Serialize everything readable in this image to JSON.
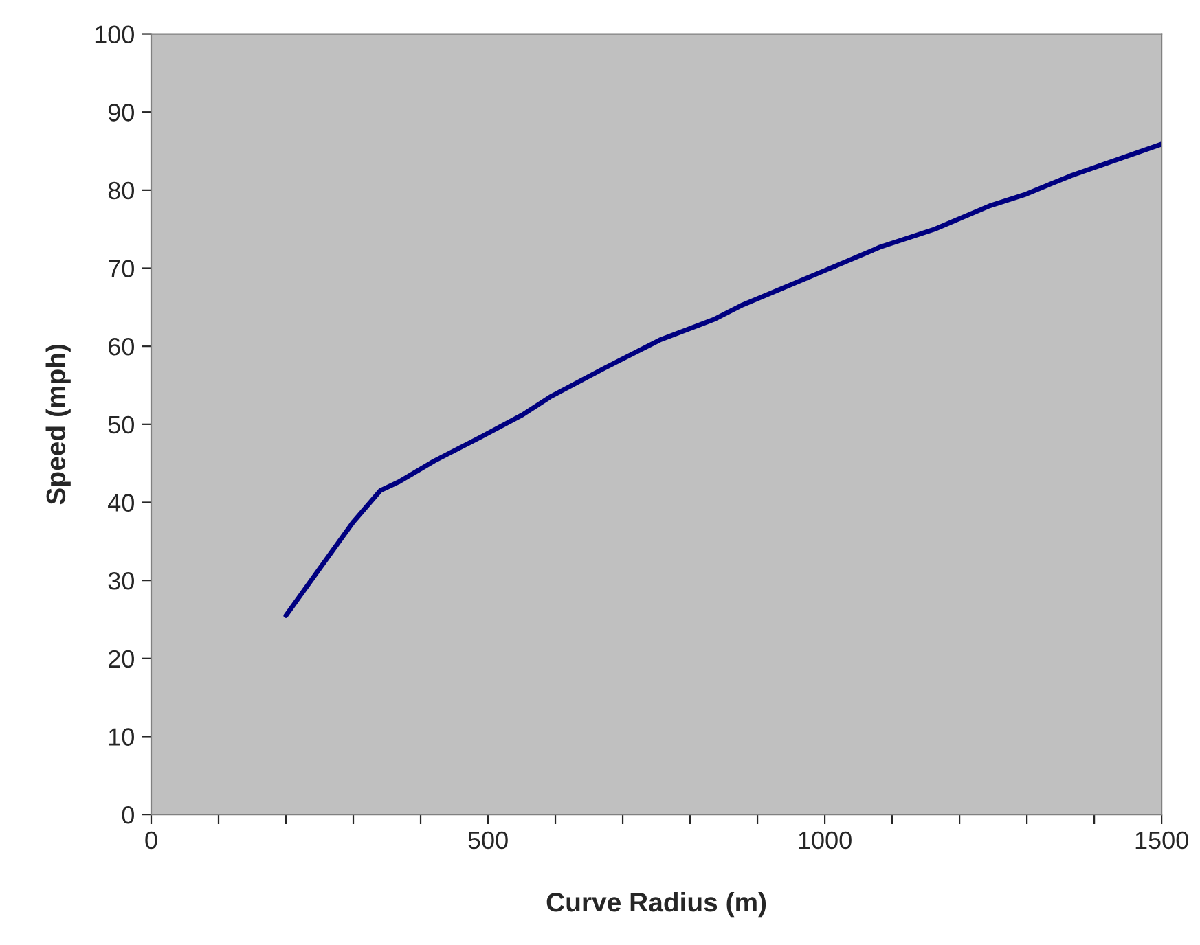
{
  "chart_data": {
    "type": "line",
    "xlabel": "Curve Radius (m)",
    "ylabel": "Speed (mph)",
    "series": [
      {
        "color": "#000080",
        "x": [
          200,
          250,
          300,
          340,
          367,
          420,
          490,
          551,
          592,
          673,
          755,
          837,
          878,
          1000,
          1082,
          1163,
          1245,
          1296,
          1367,
          1500
        ],
        "values": [
          25.5,
          31.5,
          37.5,
          41.5,
          42.6,
          45.3,
          48.4,
          51.2,
          53.5,
          57.2,
          60.8,
          63.5,
          65.3,
          69.7,
          72.7,
          75.0,
          78.0,
          79.4,
          81.9,
          85.9
        ]
      }
    ],
    "xlim": [
      0,
      1500
    ],
    "ylim": [
      0,
      100
    ],
    "xticks": [
      0,
      {
        "value": 100,
        "label": null
      },
      {
        "value": 200,
        "label": null
      },
      {
        "value": 300,
        "label": null
      },
      {
        "value": 400,
        "label": null
      },
      500,
      {
        "value": 600,
        "label": null
      },
      {
        "value": 700,
        "label": null
      },
      {
        "value": 800,
        "label": null
      },
      {
        "value": 900,
        "label": null
      },
      1000,
      {
        "value": 1100,
        "label": null
      },
      {
        "value": 1200,
        "label": null
      },
      {
        "value": 1300,
        "label": null
      },
      {
        "value": 1400,
        "label": null
      },
      1500
    ],
    "yticks": [
      0,
      10,
      20,
      30,
      40,
      50,
      60,
      70,
      80,
      90,
      100
    ],
    "grid": false,
    "marker": "none",
    "line_style": "solid"
  }
}
